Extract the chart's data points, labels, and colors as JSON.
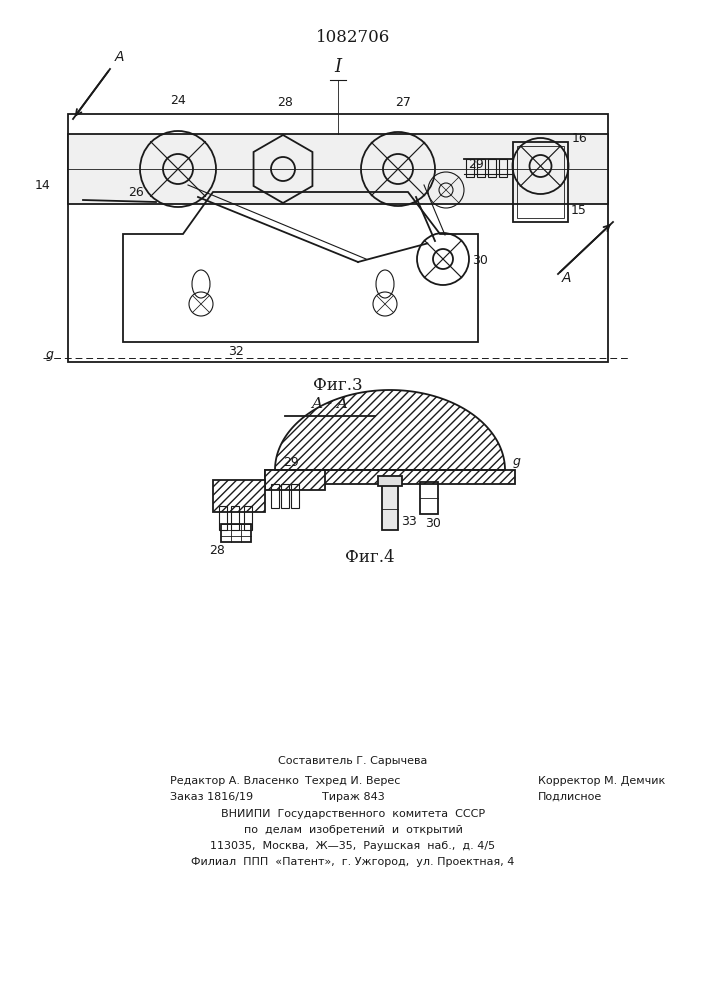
{
  "title": "1082706",
  "fig3_label": "Фиг.3",
  "fig4_label": "Фиг.4",
  "section_label": "A - A",
  "footer_line1": "Составитель Г. Сарычева",
  "footer_line2_left": "Редактор А. Власенко",
  "footer_line2_center": "Техред И. Верес",
  "footer_line2_right": "Корректор М. Демчик",
  "footer_line3_left": "Заказ 1816/19",
  "footer_line3_center": "Тираж 843",
  "footer_line3_right": "Подлисное",
  "footer_line4": "ВНИИПИ  Государственного  комитета  СССР",
  "footer_line5": "по  делам  изобретений  и  открытий",
  "footer_line6": "113035,  Москва,  Ж—35,  Раушская  наб.,  д. 4/5",
  "footer_line7": "Филиал  ППП  «Патент»,  г. Ужгород,  ул. Проектная, 4",
  "bg_color": "#ffffff",
  "line_color": "#1a1a1a"
}
